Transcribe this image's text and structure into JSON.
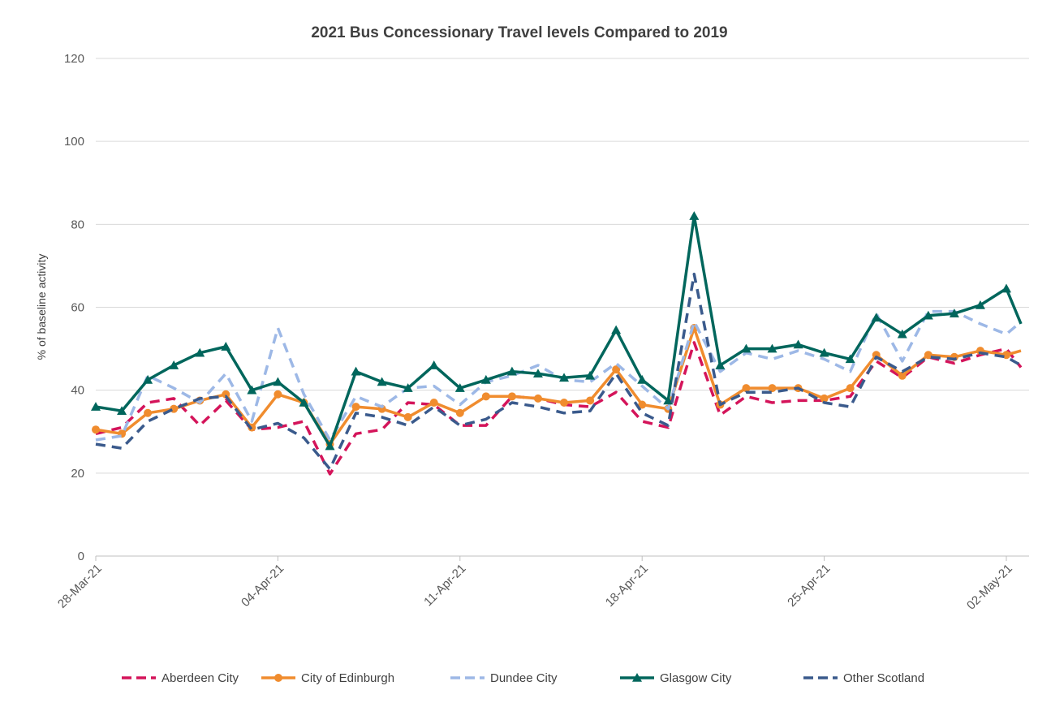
{
  "chart_data": {
    "type": "line",
    "title": "2021 Bus Concessionary Travel levels Compared to 2019",
    "xlabel": "",
    "ylabel": "% of baseline activity",
    "ylim": [
      0,
      120
    ],
    "yticks": [
      0,
      20,
      40,
      60,
      80,
      100,
      120
    ],
    "grid": true,
    "legend": "bottom",
    "x": [
      "28-Mar-21",
      "29-Mar-21",
      "30-Mar-21",
      "31-Mar-21",
      "01-Apr-21",
      "02-Apr-21",
      "03-Apr-21",
      "04-Apr-21",
      "05-Apr-21",
      "06-Apr-21",
      "07-Apr-21",
      "08-Apr-21",
      "09-Apr-21",
      "10-Apr-21",
      "11-Apr-21",
      "12-Apr-21",
      "13-Apr-21",
      "14-Apr-21",
      "15-Apr-21",
      "16-Apr-21",
      "17-Apr-21",
      "18-Apr-21",
      "19-Apr-21",
      "20-Apr-21",
      "21-Apr-21",
      "22-Apr-21",
      "23-Apr-21",
      "24-Apr-21",
      "25-Apr-21",
      "26-Apr-21",
      "27-Apr-21",
      "28-Apr-21",
      "29-Apr-21",
      "30-Apr-21",
      "01-May-21",
      "02-May-21"
    ],
    "x_tick_labels": [
      "28-Mar-21",
      "04-Apr-21",
      "11-Apr-21",
      "18-Apr-21",
      "25-Apr-21",
      "02-May-21"
    ],
    "series": [
      {
        "name": "Aberdeen City",
        "color": "#d4145a",
        "style": "dashed",
        "marker": "none",
        "values": [
          29.5,
          31,
          37,
          38,
          31.5,
          37.5,
          30.5,
          31,
          32.5,
          19.8,
          29.5,
          30.5,
          37,
          36.5,
          31.5,
          31.5,
          38.5,
          38,
          36.5,
          36,
          39.5,
          32.5,
          31,
          51.5,
          34,
          38.5,
          37,
          37.5,
          37.5,
          38.5,
          47,
          43,
          48,
          46.5,
          48.5,
          50
        ]
      },
      {
        "name": "City of Edinburgh",
        "color": "#f08c2e",
        "style": "solid",
        "marker": "circle",
        "values": [
          30.5,
          29.5,
          34.5,
          35.5,
          37.5,
          39,
          31,
          39,
          37,
          27,
          36,
          35.5,
          33.5,
          37,
          34.5,
          38.5,
          38.5,
          38,
          37,
          37.5,
          45,
          36.5,
          35.5,
          55,
          36.5,
          40.5,
          40.5,
          40.5,
          38,
          40.5,
          48.5,
          43.5,
          48.5,
          48,
          49.5,
          48.5
        ]
      },
      {
        "name": "Dundee City",
        "color": "#9db8e6",
        "style": "dashed",
        "marker": "none",
        "values": [
          28,
          29,
          43.5,
          40.5,
          37,
          44,
          32.5,
          55,
          39,
          28,
          38.5,
          36,
          40.5,
          41,
          36.5,
          42,
          43.5,
          46,
          42.5,
          42,
          46.5,
          41,
          35.5,
          56.5,
          44.5,
          49,
          47.5,
          49.5,
          47.5,
          44.5,
          58.5,
          47,
          59,
          59,
          56,
          53.5
        ]
      },
      {
        "name": "Glasgow City",
        "color": "#00665c",
        "style": "solid",
        "marker": "triangle",
        "values": [
          36,
          35,
          42.5,
          46,
          49,
          50.5,
          40,
          42,
          37,
          26.5,
          44.5,
          42,
          40.5,
          46,
          40.5,
          42.5,
          44.5,
          44,
          43,
          43.5,
          54.5,
          42.5,
          37.5,
          82,
          46,
          50,
          50,
          51,
          49,
          47.5,
          57.5,
          53.5,
          58,
          58.5,
          60.5,
          64.5
        ]
      },
      {
        "name": "Other Scotland",
        "color": "#3a5a8c",
        "style": "dashed",
        "marker": "none",
        "values": [
          27,
          26,
          32.5,
          35.5,
          38,
          38.5,
          30.5,
          32,
          28.5,
          21,
          34.5,
          33.5,
          31.5,
          36,
          31.5,
          33,
          37,
          36,
          34.5,
          35,
          44,
          34.5,
          31.5,
          68,
          36.5,
          39.5,
          39.5,
          40.5,
          37,
          36,
          48,
          44.5,
          48,
          47.5,
          49,
          48
        ]
      }
    ],
    "series_tail": {
      "Aberdeen City": 45.5,
      "City of Edinburgh": 49.5,
      "Dundee City": 56.5,
      "Glasgow City": 56,
      "Other Scotland": 46
    }
  }
}
